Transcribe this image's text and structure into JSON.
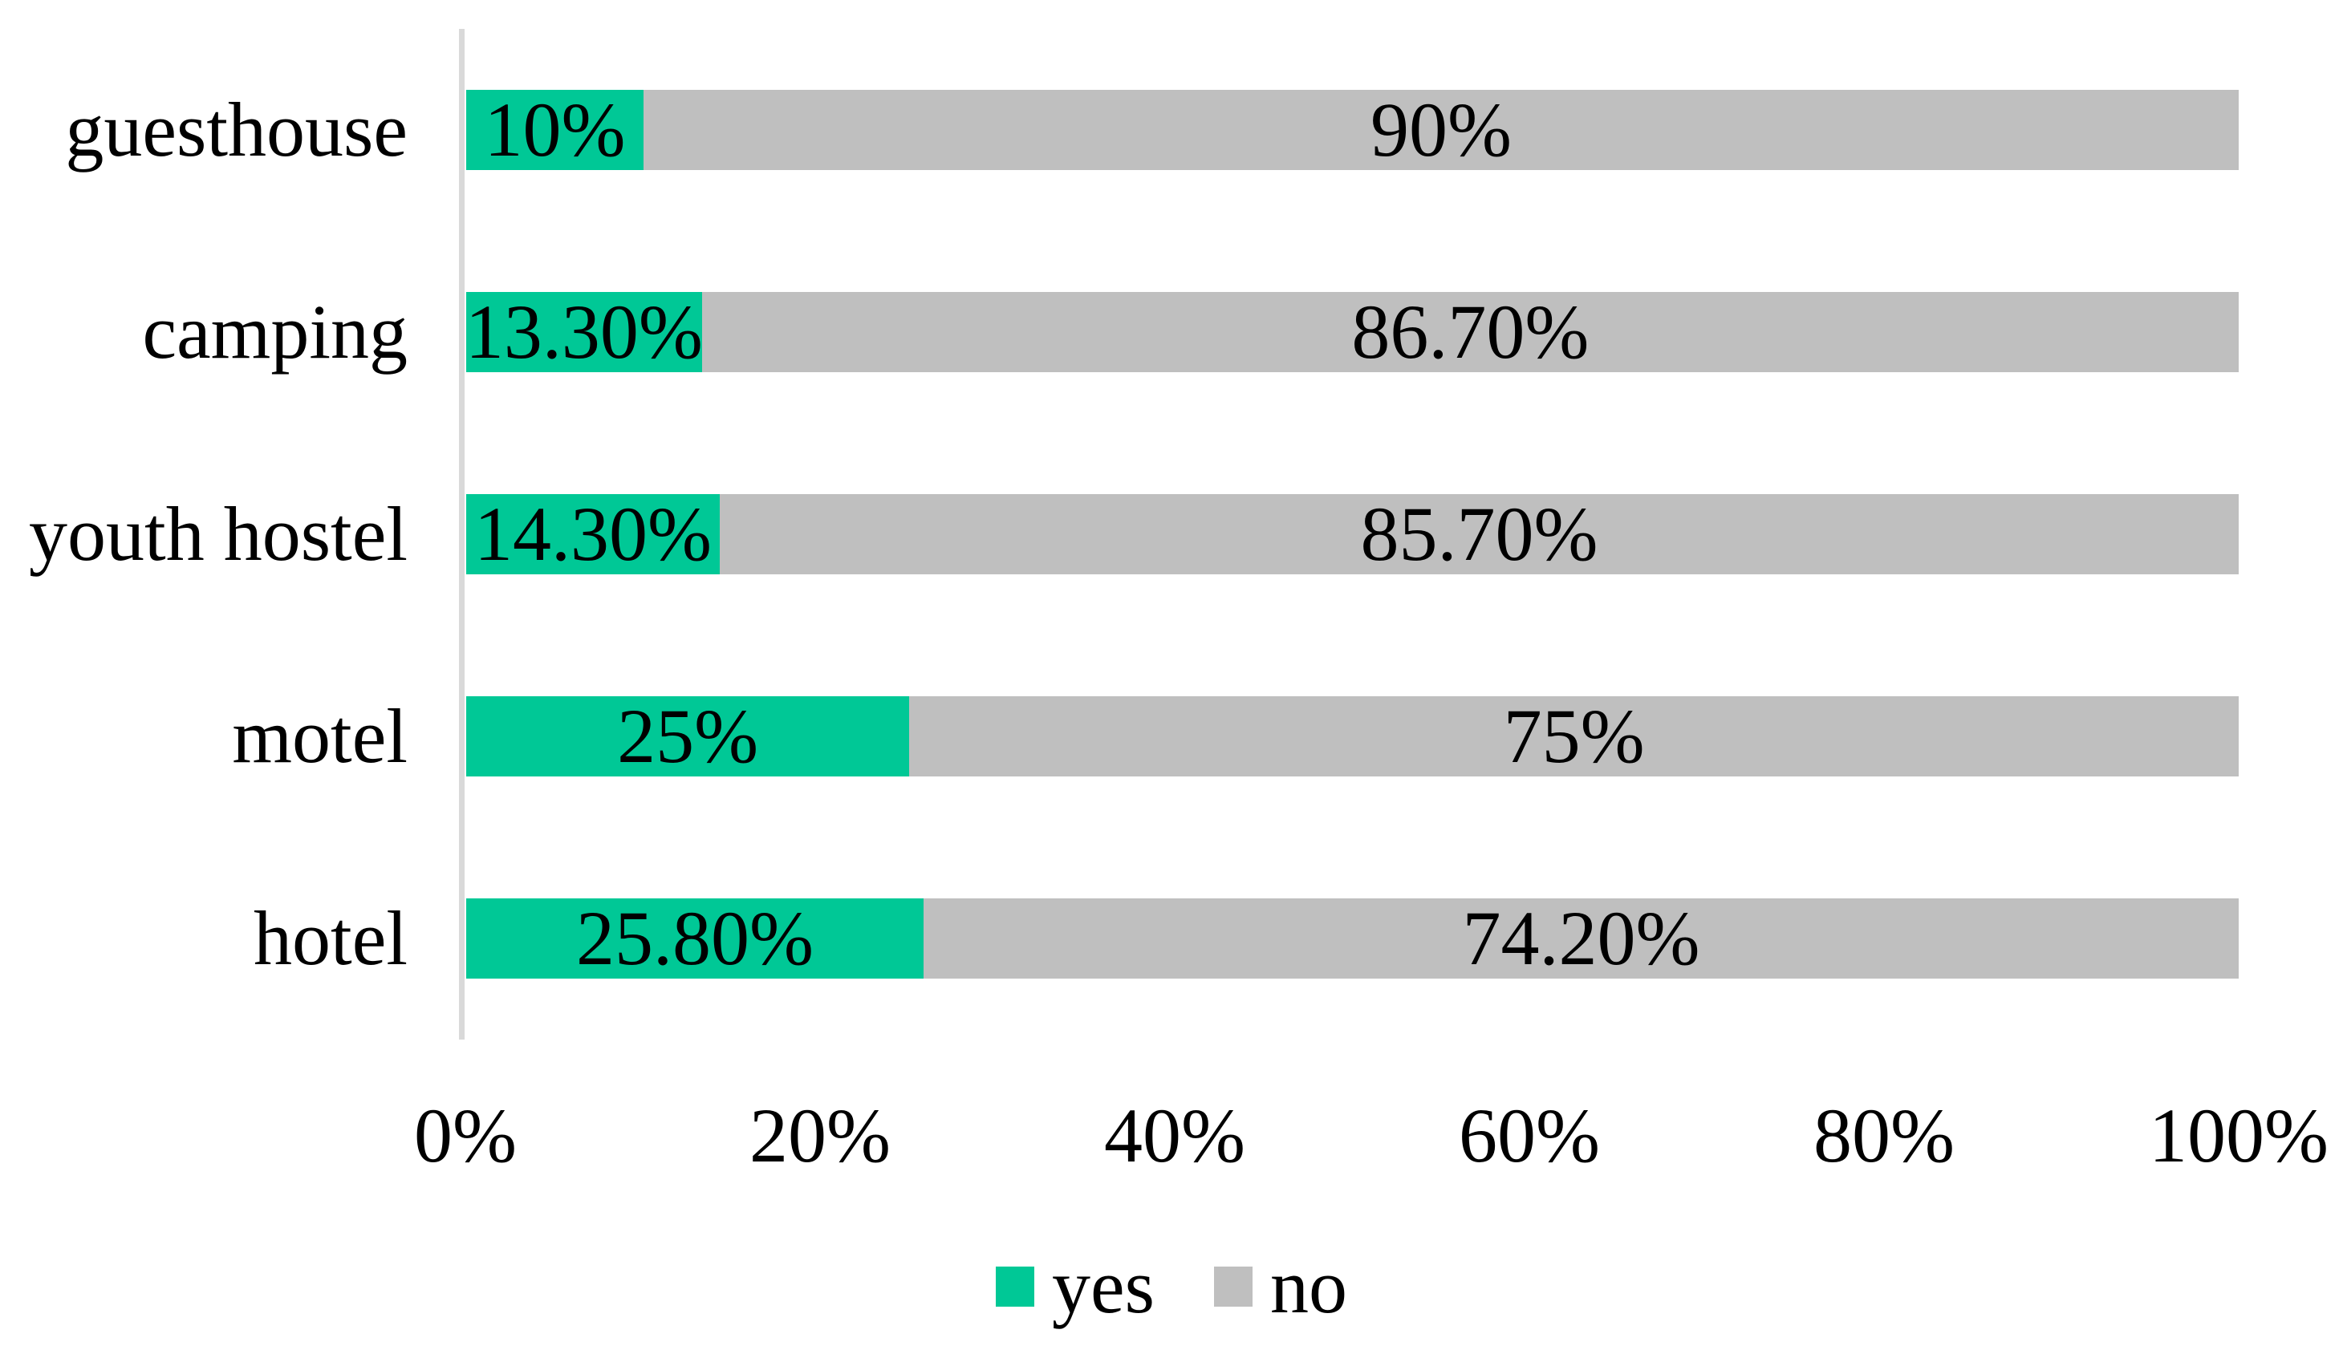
{
  "colors": {
    "yes": "#00C896",
    "no": "#BFBFBF",
    "axis": "#D9D9D9",
    "text": "#000000",
    "background": "#FFFFFF"
  },
  "chart_data": {
    "type": "bar",
    "orientation": "horizontal",
    "stacked": true,
    "categories": [
      "guesthouse",
      "camping",
      "youth hostel",
      "motel",
      "hotel"
    ],
    "series": [
      {
        "name": "yes",
        "color": "#00C896",
        "values": [
          10,
          13.3,
          14.3,
          25,
          25.8
        ],
        "labels": [
          "10%",
          "13.30%",
          "14.30%",
          "25%",
          "25.80%"
        ]
      },
      {
        "name": "no",
        "color": "#BFBFBF",
        "values": [
          90,
          86.7,
          85.7,
          75,
          74.2
        ],
        "labels": [
          "90%",
          "86.70%",
          "85.70%",
          "75%",
          "74.20%"
        ]
      }
    ],
    "x_axis": {
      "ticks": [
        "0%",
        "20%",
        "40%",
        "60%",
        "80%",
        "100%"
      ],
      "range": [
        0,
        100
      ]
    },
    "legend": {
      "position": "bottom",
      "items": [
        "yes",
        "no"
      ]
    },
    "grid": false
  }
}
